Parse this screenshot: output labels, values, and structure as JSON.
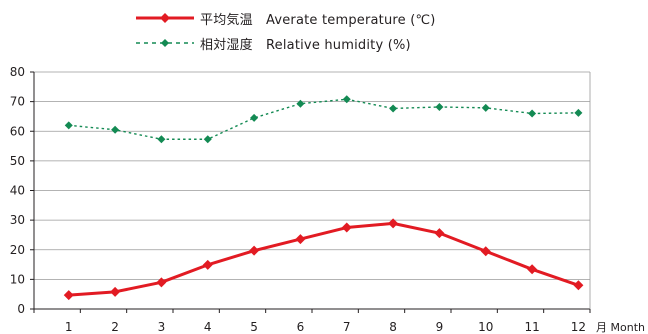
{
  "chart_data": {
    "type": "line",
    "categories": [
      "1",
      "2",
      "3",
      "4",
      "5",
      "6",
      "7",
      "8",
      "9",
      "10",
      "11",
      "12"
    ],
    "series": [
      {
        "name": "平均気温　Averate temperature (℃)",
        "values": [
          4.7,
          5.8,
          9.0,
          14.9,
          19.7,
          23.6,
          27.5,
          28.9,
          25.6,
          19.5,
          13.4,
          8.0
        ],
        "color": "#e21b23",
        "style": "solid"
      },
      {
        "name": "相対湿度　Relative humidity (%)",
        "values": [
          62,
          60.5,
          57.3,
          57.3,
          64.5,
          69.3,
          70.8,
          67.7,
          68.2,
          67.9,
          66.0,
          66.2
        ],
        "color": "#138a53",
        "style": "dotted"
      }
    ],
    "yticks": [
      "0",
      "10",
      "20",
      "30",
      "40",
      "50",
      "60",
      "70",
      "80"
    ],
    "ylim": [
      0,
      80
    ],
    "xlabel": "月 Month",
    "grid": "horizontal",
    "legend_position": "top-center"
  }
}
